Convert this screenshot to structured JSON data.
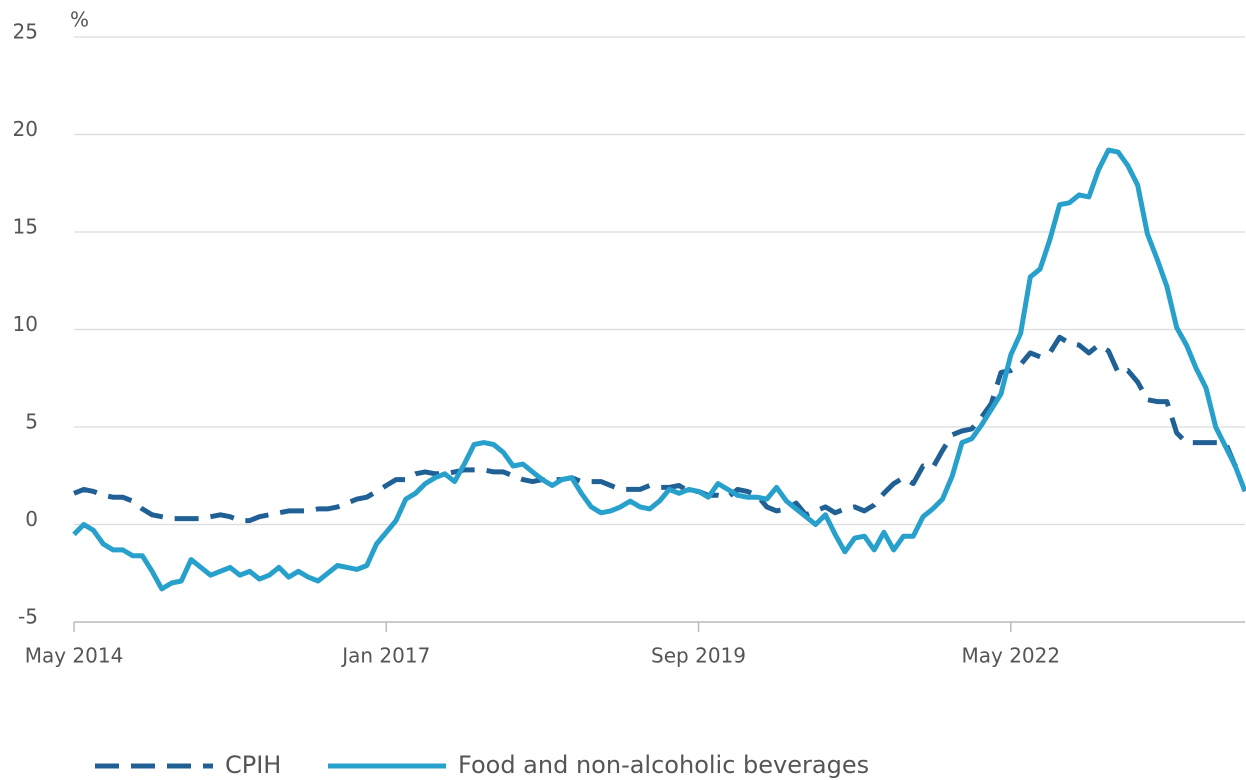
{
  "chart_data": {
    "type": "line",
    "y_label": "%",
    "x": [
      "May 2014",
      "Jun 2014",
      "Jul 2014",
      "Aug 2014",
      "Sep 2014",
      "Oct 2014",
      "Nov 2014",
      "Dec 2014",
      "Jan 2015",
      "Feb 2015",
      "Mar 2015",
      "Apr 2015",
      "May 2015",
      "Jun 2015",
      "Jul 2015",
      "Aug 2015",
      "Sep 2015",
      "Oct 2015",
      "Nov 2015",
      "Dec 2015",
      "Jan 2016",
      "Feb 2016",
      "Mar 2016",
      "Apr 2016",
      "May 2016",
      "Jun 2016",
      "Jul 2016",
      "Aug 2016",
      "Sep 2016",
      "Oct 2016",
      "Nov 2016",
      "Dec 2016",
      "Jan 2017",
      "Feb 2017",
      "Mar 2017",
      "Apr 2017",
      "May 2017",
      "Jun 2017",
      "Jul 2017",
      "Aug 2017",
      "Sep 2017",
      "Oct 2017",
      "Nov 2017",
      "Dec 2017",
      "Jan 2018",
      "Feb 2018",
      "Mar 2018",
      "Apr 2018",
      "May 2018",
      "Jun 2018",
      "Jul 2018",
      "Aug 2018",
      "Sep 2018",
      "Oct 2018",
      "Nov 2018",
      "Dec 2018",
      "Jan 2019",
      "Feb 2019",
      "Mar 2019",
      "Apr 2019",
      "May 2019",
      "Jun 2019",
      "Jul 2019",
      "Aug 2019",
      "Sep 2019",
      "Oct 2019",
      "Nov 2019",
      "Dec 2019",
      "Jan 2020",
      "Feb 2020",
      "Mar 2020",
      "Apr 2020",
      "May 2020",
      "Jun 2020",
      "Jul 2020",
      "Aug 2020",
      "Sep 2020",
      "Oct 2020",
      "Nov 2020",
      "Dec 2020",
      "Jan 2021",
      "Feb 2021",
      "Mar 2021",
      "Apr 2021",
      "May 2021",
      "Jun 2021",
      "Jul 2021",
      "Aug 2021",
      "Sep 2021",
      "Oct 2021",
      "Nov 2021",
      "Dec 2021",
      "Jan 2022",
      "Feb 2022",
      "Mar 2022",
      "Apr 2022",
      "May 2022",
      "Jun 2022",
      "Jul 2022",
      "Aug 2022",
      "Sep 2022",
      "Oct 2022",
      "Nov 2022",
      "Dec 2022",
      "Jan 2023",
      "Feb 2023",
      "Mar 2023",
      "Apr 2023",
      "May 2023",
      "Jun 2023",
      "Jul 2023",
      "Aug 2023",
      "Sep 2023",
      "Oct 2023",
      "Nov 2023",
      "Dec 2023",
      "Jan 2024",
      "Feb 2024",
      "Mar 2024",
      "Apr 2024",
      "May 2024"
    ],
    "series": [
      {
        "name": "CPIH",
        "color": "#206095",
        "dashed": true,
        "values": [
          1.6,
          1.8,
          1.7,
          1.5,
          1.4,
          1.4,
          1.2,
          0.8,
          0.5,
          0.4,
          0.3,
          0.3,
          0.3,
          0.3,
          0.4,
          0.5,
          0.4,
          0.2,
          0.2,
          0.4,
          0.5,
          0.6,
          0.7,
          0.7,
          0.7,
          0.8,
          0.8,
          0.9,
          1.1,
          1.3,
          1.4,
          1.7,
          2.0,
          2.3,
          2.3,
          2.6,
          2.7,
          2.6,
          2.6,
          2.7,
          2.8,
          2.8,
          2.8,
          2.7,
          2.7,
          2.5,
          2.3,
          2.2,
          2.3,
          2.3,
          2.3,
          2.4,
          2.2,
          2.2,
          2.2,
          2.0,
          1.8,
          1.8,
          1.8,
          2.0,
          1.9,
          1.9,
          2.0,
          1.7,
          1.7,
          1.5,
          1.5,
          1.4,
          1.8,
          1.7,
          1.5,
          0.9,
          0.7,
          0.8,
          1.1,
          0.5,
          0.7,
          0.9,
          0.6,
          0.8,
          0.9,
          0.7,
          1.0,
          1.6,
          2.1,
          2.4,
          2.1,
          3.0,
          2.9,
          3.8,
          4.6,
          4.8,
          4.9,
          5.5,
          6.2,
          7.8,
          7.9,
          8.2,
          8.8,
          8.6,
          8.8,
          9.6,
          9.3,
          9.2,
          8.8,
          9.2,
          8.9,
          7.8,
          7.9,
          7.3,
          6.4,
          6.3,
          6.3,
          4.7,
          4.2,
          4.2,
          4.2,
          4.2,
          4.2,
          3.0,
          2.8
        ]
      },
      {
        "name": "Food and non-alcoholic beverages",
        "color": "#27a0cc",
        "dashed": false,
        "values": [
          -0.5,
          0.0,
          -0.3,
          -1.0,
          -1.3,
          -1.3,
          -1.6,
          -1.6,
          -2.4,
          -3.3,
          -3.0,
          -2.9,
          -1.8,
          -2.2,
          -2.6,
          -2.4,
          -2.2,
          -2.6,
          -2.4,
          -2.8,
          -2.6,
          -2.2,
          -2.7,
          -2.4,
          -2.7,
          -2.9,
          -2.5,
          -2.1,
          -2.2,
          -2.3,
          -2.1,
          -1.0,
          -0.4,
          0.2,
          1.3,
          1.6,
          2.1,
          2.4,
          2.6,
          2.2,
          3.1,
          4.1,
          4.2,
          4.1,
          3.7,
          3.0,
          3.1,
          2.7,
          2.3,
          2.0,
          2.3,
          2.4,
          1.6,
          0.9,
          0.6,
          0.7,
          0.9,
          1.2,
          0.9,
          0.8,
          1.2,
          1.8,
          1.6,
          1.8,
          1.7,
          1.4,
          2.1,
          1.8,
          1.5,
          1.4,
          1.4,
          1.3,
          1.9,
          1.2,
          0.8,
          0.4,
          0.0,
          0.5,
          -0.5,
          -1.4,
          -0.7,
          -0.6,
          -1.3,
          -0.4,
          -1.3,
          -0.6,
          -0.6,
          0.4,
          0.8,
          1.3,
          2.5,
          4.2,
          4.4,
          5.1,
          5.9,
          6.7,
          8.7,
          9.8,
          12.7,
          13.1,
          14.6,
          16.4,
          16.5,
          16.9,
          16.8,
          18.2,
          19.2,
          19.1,
          18.4,
          17.4,
          14.9,
          13.6,
          12.2,
          10.1,
          9.2,
          8.0,
          7.0,
          5.0,
          4.0,
          3.0,
          1.7
        ]
      }
    ],
    "ylim": [
      -5,
      25
    ],
    "yticks": [
      -5,
      0,
      5,
      10,
      15,
      20,
      25
    ],
    "xticks": [
      "May 2014",
      "Jan 2017",
      "Sep 2019",
      "May 2022"
    ],
    "grid": true,
    "legend": "bottom"
  }
}
